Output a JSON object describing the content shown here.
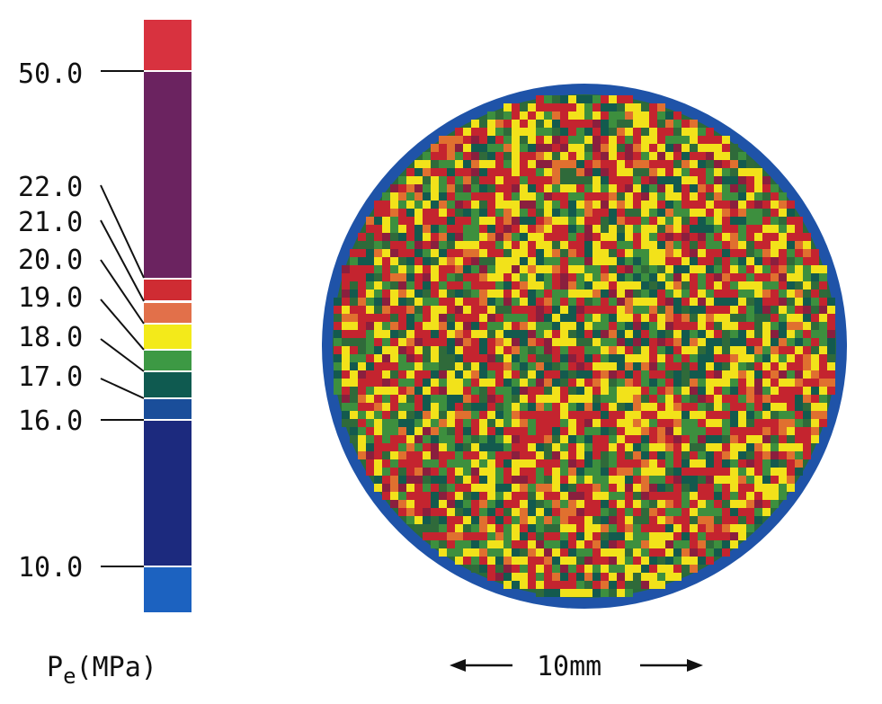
{
  "chart_data": {
    "type": "heatmap",
    "colorbar": {
      "tick_labels": [
        "50.0",
        "22.0",
        "21.0",
        "20.0",
        "19.0",
        "18.0",
        "17.0",
        "16.0",
        "10.0"
      ],
      "bands": [
        {
          "color": "#d8323f"
        },
        {
          "color": "#6b2360"
        },
        {
          "color": "#cf2c33"
        },
        {
          "color": "#e2704a"
        },
        {
          "color": "#f3ea1a"
        },
        {
          "color": "#3d9944"
        },
        {
          "color": "#0f5a50"
        },
        {
          "color": "#1a4e9a"
        },
        {
          "color": "#1c2a7e"
        },
        {
          "color": "#1c62c0"
        }
      ],
      "unit": {
        "symbol": "P",
        "subscript": "e",
        "units": "(MPa)"
      }
    },
    "field": {
      "shape": "circle",
      "rim_color": "#1f53a8",
      "palette": [
        "#c4242f",
        "#e0702f",
        "#f2e21a",
        "#3d8f3e",
        "#135a4e",
        "#8a1f3e",
        "#2f6a3a"
      ],
      "palette_weights": [
        0.28,
        0.08,
        0.22,
        0.16,
        0.12,
        0.06,
        0.08
      ]
    },
    "scale_bar": {
      "label": "10mm"
    }
  }
}
